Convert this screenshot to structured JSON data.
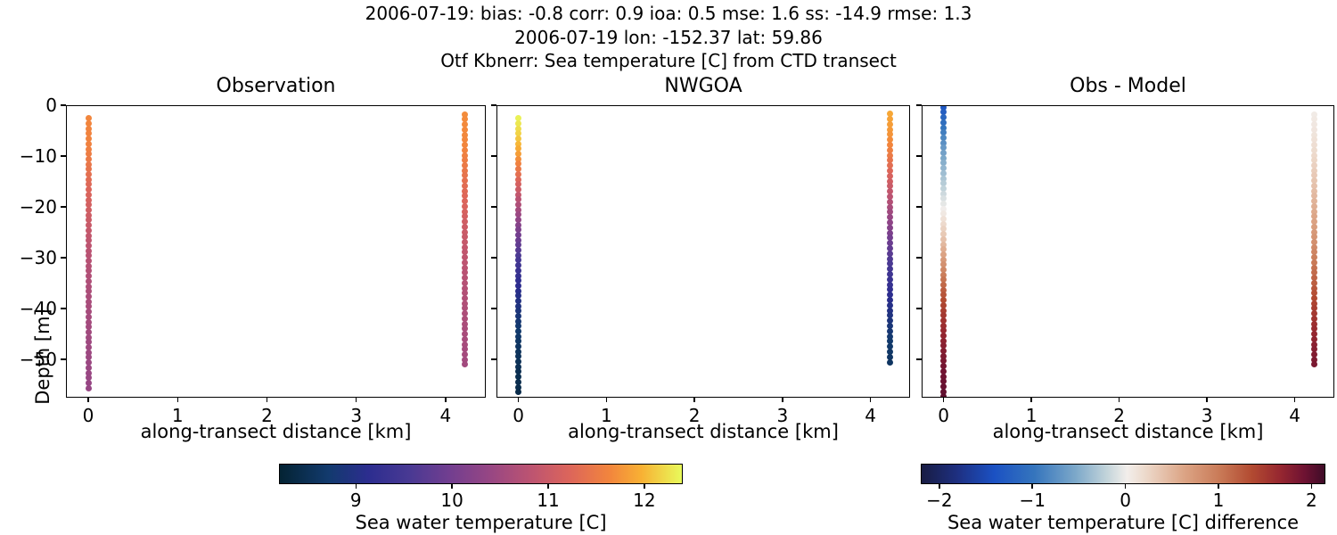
{
  "header": {
    "line1": "2006-07-19: bias: -0.8  corr: 0.9  ioa: 0.5  mse: 1.6  ss: -14.9  rmse: 1.3",
    "line2": "2006-07-19 lon: -152.37 lat: 59.86",
    "line3": "Otf Kbnerr: Sea temperature [C] from CTD transect"
  },
  "style": {
    "background": "#ffffff",
    "text_color": "#000000",
    "spine_color": "#000000"
  },
  "colormaps": {
    "thermal": [
      [
        0,
        "#042333"
      ],
      [
        0.12,
        "#123a6d"
      ],
      [
        0.22,
        "#2c2d8f"
      ],
      [
        0.32,
        "#483993"
      ],
      [
        0.42,
        "#713e90"
      ],
      [
        0.52,
        "#964684"
      ],
      [
        0.62,
        "#bb5372"
      ],
      [
        0.72,
        "#dc655b"
      ],
      [
        0.82,
        "#f2853d"
      ],
      [
        0.9,
        "#f8b134"
      ],
      [
        1,
        "#e8fa5b"
      ]
    ],
    "balance": [
      [
        0,
        "#181c43"
      ],
      [
        0.09,
        "#1e3082"
      ],
      [
        0.18,
        "#1b51c3"
      ],
      [
        0.28,
        "#3575bd"
      ],
      [
        0.38,
        "#7ba7c9"
      ],
      [
        0.46,
        "#c3d4da"
      ],
      [
        0.51,
        "#f2eeeb"
      ],
      [
        0.56,
        "#ecd7c8"
      ],
      [
        0.65,
        "#dca586"
      ],
      [
        0.74,
        "#c97a57"
      ],
      [
        0.82,
        "#b24a31"
      ],
      [
        0.89,
        "#962730"
      ],
      [
        0.95,
        "#6e1232"
      ],
      [
        1,
        "#3f0c28"
      ]
    ]
  },
  "chart_data": [
    {
      "type": "scatter",
      "title": "Observation",
      "xlabel": "along-transect distance [km]",
      "ylabel": "Depth [m]",
      "xlim": [
        -0.25,
        4.45
      ],
      "ylim": [
        0,
        -57.5
      ],
      "xticks": [
        0,
        1,
        2,
        3,
        4
      ],
      "yticks": [
        0,
        -10,
        -20,
        -30,
        -40,
        -50
      ],
      "show_yticklabels": true,
      "colormap": "thermal",
      "vmin": 8.2,
      "vmax": 12.4,
      "series": [
        {
          "name": "ctd-station-0km",
          "x": 0,
          "depth_top": -2.6,
          "depth_bottom": -55.6,
          "n": 54,
          "profile": [
            [
              -2.6,
              11.65
            ],
            [
              -8,
              11.6
            ],
            [
              -12,
              11.45
            ],
            [
              -16,
              11.25
            ],
            [
              -20,
              11.1
            ],
            [
              -24,
              10.95
            ],
            [
              -28,
              10.82
            ],
            [
              -32,
              10.72
            ],
            [
              -36,
              10.64
            ],
            [
              -40,
              10.58
            ],
            [
              -44,
              10.52
            ],
            [
              -48,
              10.47
            ],
            [
              -52,
              10.42
            ],
            [
              -55.6,
              10.38
            ]
          ]
        },
        {
          "name": "ctd-station-4.2km",
          "x": 4.22,
          "depth_top": -1.8,
          "depth_bottom": -51,
          "n": 50,
          "profile": [
            [
              -1.8,
              11.7
            ],
            [
              -8,
              11.65
            ],
            [
              -12,
              11.5
            ],
            [
              -16,
              11.32
            ],
            [
              -20,
              11.18
            ],
            [
              -24,
              11.02
            ],
            [
              -28,
              10.9
            ],
            [
              -32,
              10.8
            ],
            [
              -36,
              10.72
            ],
            [
              -40,
              10.66
            ],
            [
              -44,
              10.6
            ],
            [
              -48,
              10.55
            ],
            [
              -51,
              10.52
            ]
          ]
        }
      ]
    },
    {
      "type": "scatter",
      "title": "NWGOA",
      "xlabel": "along-transect distance [km]",
      "ylabel": "",
      "xlim": [
        -0.25,
        4.45
      ],
      "ylim": [
        0,
        -57.5
      ],
      "xticks": [
        0,
        1,
        2,
        3,
        4
      ],
      "yticks": [
        0,
        -10,
        -20,
        -30,
        -40,
        -50
      ],
      "show_yticklabels": false,
      "colormap": "thermal",
      "vmin": 8.2,
      "vmax": 12.4,
      "series": [
        {
          "name": "model-station-0km",
          "x": 0,
          "depth_top": -2.6,
          "depth_bottom": -56.4,
          "n": 55,
          "profile": [
            [
              -2.6,
              12.35
            ],
            [
              -6,
              12.15
            ],
            [
              -9,
              11.9
            ],
            [
              -12,
              11.55
            ],
            [
              -15,
              11.2
            ],
            [
              -18,
              10.85
            ],
            [
              -21,
              10.5
            ],
            [
              -24,
              10.15
            ],
            [
              -27,
              9.85
            ],
            [
              -30,
              9.55
            ],
            [
              -33,
              9.3
            ],
            [
              -36,
              9.1
            ],
            [
              -39,
              8.95
            ],
            [
              -42,
              8.8
            ],
            [
              -45,
              8.68
            ],
            [
              -48,
              8.58
            ],
            [
              -52,
              8.48
            ],
            [
              -56.4,
              8.4
            ]
          ]
        },
        {
          "name": "model-station-4.2km",
          "x": 4.22,
          "depth_top": -1.7,
          "depth_bottom": -50.5,
          "n": 49,
          "profile": [
            [
              -1.7,
              11.9
            ],
            [
              -6,
              11.75
            ],
            [
              -10,
              11.5
            ],
            [
              -14,
              11.15
            ],
            [
              -18,
              10.8
            ],
            [
              -22,
              10.4
            ],
            [
              -26,
              10.0
            ],
            [
              -30,
              9.65
            ],
            [
              -34,
              9.35
            ],
            [
              -38,
              9.1
            ],
            [
              -42,
              8.9
            ],
            [
              -46,
              8.72
            ],
            [
              -50.5,
              8.6
            ]
          ]
        }
      ]
    },
    {
      "type": "scatter",
      "title": "Obs - Model",
      "xlabel": "along-transect distance [km]",
      "ylabel": "",
      "xlim": [
        -0.25,
        4.45
      ],
      "ylim": [
        0,
        -57.5
      ],
      "xticks": [
        0,
        1,
        2,
        3,
        4
      ],
      "yticks": [
        0,
        -10,
        -20,
        -30,
        -40,
        -50
      ],
      "show_yticklabels": false,
      "colormap": "balance",
      "vmin": -2.2,
      "vmax": 2.15,
      "series": [
        {
          "name": "difference-station-0km",
          "x": 0,
          "depth_top": -0.4,
          "depth_bottom": -57.3,
          "n": 58,
          "profile": [
            [
              -0.4,
              -1.35
            ],
            [
              -3,
              -1.1
            ],
            [
              -6,
              -0.85
            ],
            [
              -9,
              -0.62
            ],
            [
              -12,
              -0.45
            ],
            [
              -15,
              -0.28
            ],
            [
              -18,
              -0.12
            ],
            [
              -21,
              0.05
            ],
            [
              -24,
              0.25
            ],
            [
              -27,
              0.45
            ],
            [
              -30,
              0.7
            ],
            [
              -33,
              0.95
            ],
            [
              -36,
              1.2
            ],
            [
              -39,
              1.4
            ],
            [
              -42,
              1.55
            ],
            [
              -45,
              1.68
            ],
            [
              -48,
              1.78
            ],
            [
              -52,
              1.9
            ],
            [
              -57.3,
              2.0
            ]
          ]
        },
        {
          "name": "difference-station-4.2km",
          "x": 4.22,
          "depth_top": -1.8,
          "depth_bottom": -51,
          "n": 50,
          "profile": [
            [
              -1.8,
              0.05
            ],
            [
              -6,
              0.12
            ],
            [
              -10,
              0.22
            ],
            [
              -14,
              0.35
            ],
            [
              -18,
              0.48
            ],
            [
              -22,
              0.62
            ],
            [
              -26,
              0.78
            ],
            [
              -29,
              0.92
            ],
            [
              -32,
              1.08
            ],
            [
              -35,
              1.22
            ],
            [
              -38,
              1.38
            ],
            [
              -41,
              1.52
            ],
            [
              -44,
              1.64
            ],
            [
              -47,
              1.75
            ],
            [
              -51,
              1.85
            ]
          ]
        }
      ]
    }
  ],
  "colorbars": [
    {
      "label": "Sea water temperature [C]",
      "ticks": [
        9,
        10,
        11,
        12
      ],
      "vmin": 8.2,
      "vmax": 12.4,
      "colormap": "thermal"
    },
    {
      "label": "Sea water temperature [C] difference",
      "ticks": [
        -2,
        -1,
        0,
        1,
        2
      ],
      "vmin": -2.2,
      "vmax": 2.15,
      "colormap": "balance"
    }
  ]
}
